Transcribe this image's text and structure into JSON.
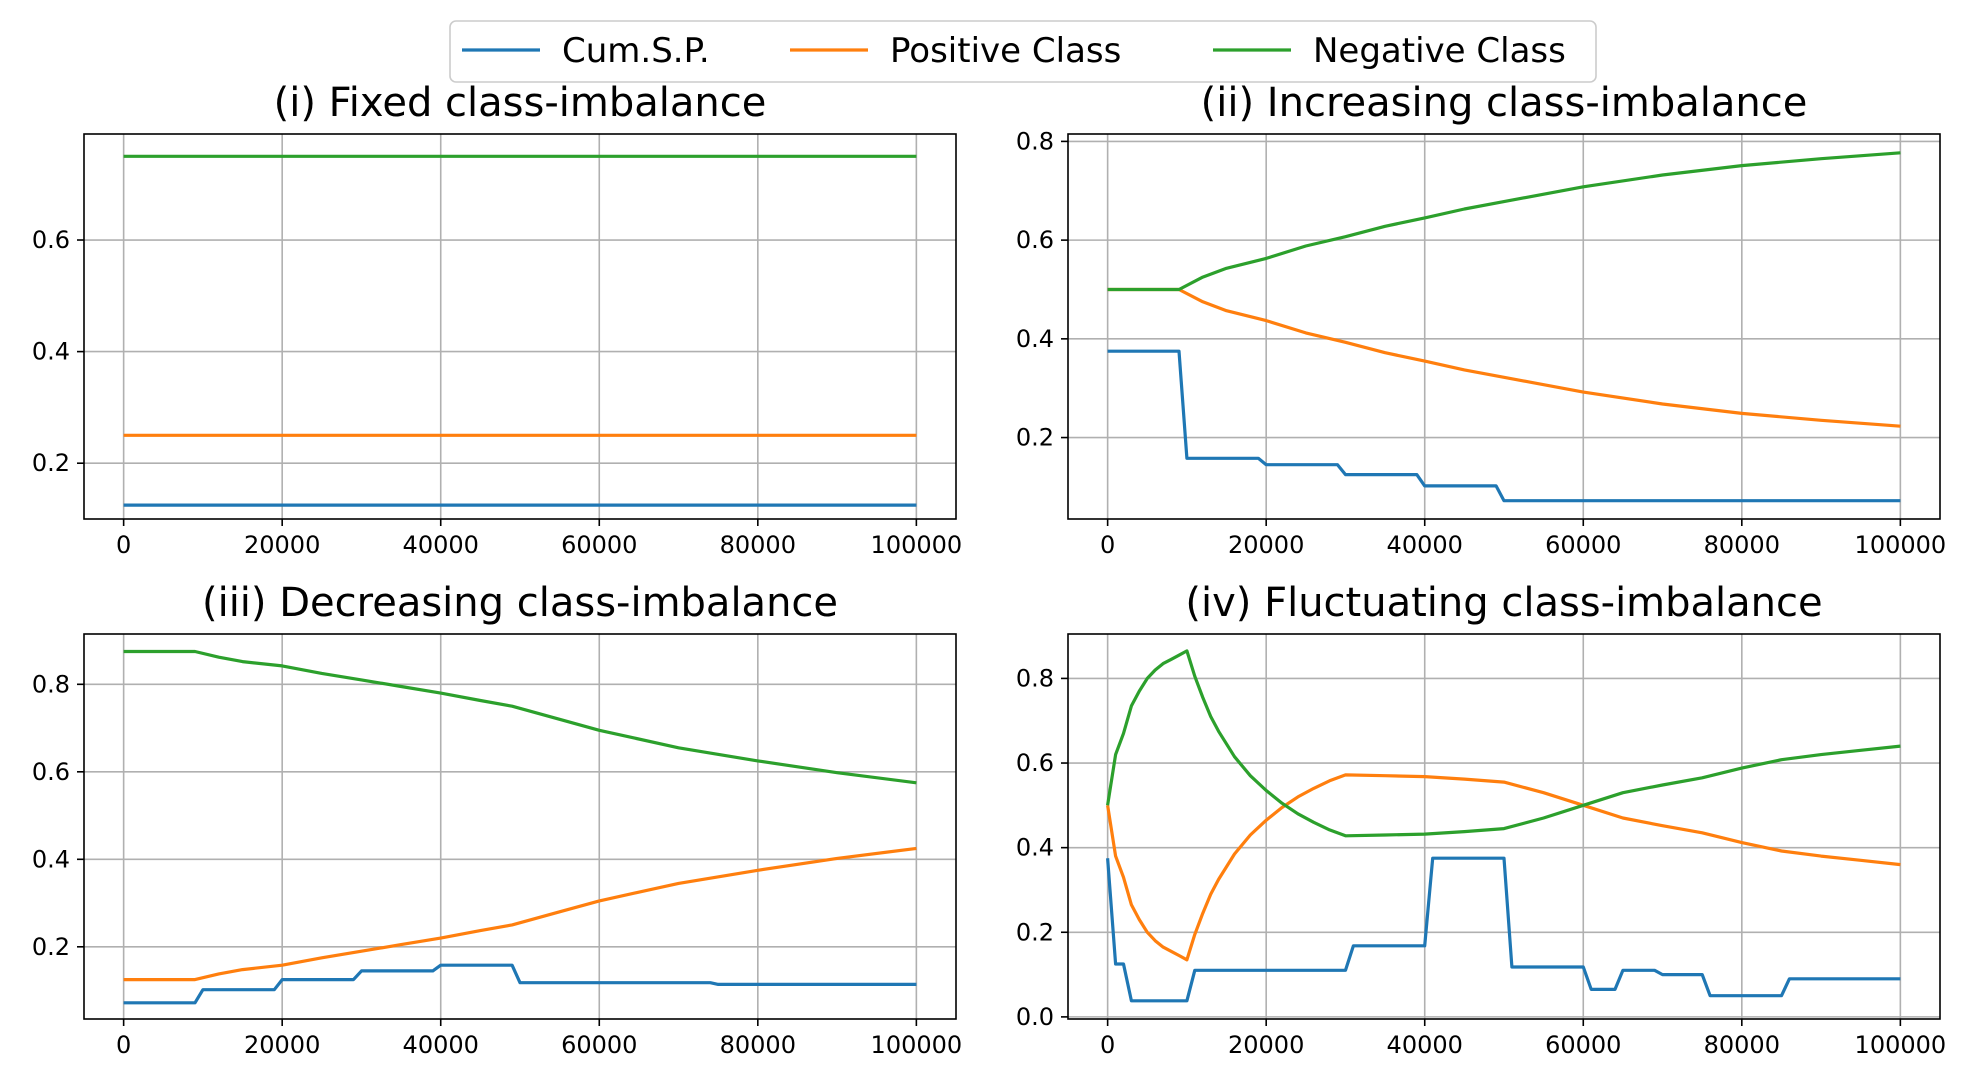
{
  "legend": {
    "position": "top-center",
    "entries": [
      {
        "label": "Cum.S.P.",
        "color": "#1f77b4"
      },
      {
        "label": "Positive Class",
        "color": "#ff7f0e"
      },
      {
        "label": "Negative Class",
        "color": "#2ca02c"
      }
    ]
  },
  "chart_data": [
    {
      "type": "line",
      "title": "(i) Fixed class-imbalance",
      "xlabel": "",
      "ylabel": "",
      "xlim": [
        -5000,
        105000
      ],
      "ylim": [
        0.1,
        0.79
      ],
      "xticks": [
        0,
        20000,
        40000,
        60000,
        80000,
        100000
      ],
      "xtick_labels": [
        "0",
        "20000",
        "40000",
        "60000",
        "80000",
        "100000"
      ],
      "yticks": [
        0.2,
        0.4,
        0.6
      ],
      "ytick_labels": [
        "0.2",
        "0.4",
        "0.6"
      ],
      "grid": true,
      "series": [
        {
          "name": "Cum.S.P.",
          "color": "#1f77b4",
          "x": [
            0,
            100000
          ],
          "y": [
            0.125,
            0.125
          ]
        },
        {
          "name": "Positive Class",
          "color": "#ff7f0e",
          "x": [
            0,
            100000
          ],
          "y": [
            0.25,
            0.25
          ]
        },
        {
          "name": "Negative Class",
          "color": "#2ca02c",
          "x": [
            0,
            100000
          ],
          "y": [
            0.75,
            0.75
          ]
        }
      ]
    },
    {
      "type": "line",
      "title": "(ii) Increasing class-imbalance",
      "xlabel": "",
      "ylabel": "",
      "xlim": [
        -5000,
        105000
      ],
      "ylim": [
        0.035,
        0.815
      ],
      "xticks": [
        0,
        20000,
        40000,
        60000,
        80000,
        100000
      ],
      "xtick_labels": [
        "0",
        "20000",
        "40000",
        "60000",
        "80000",
        "100000"
      ],
      "yticks": [
        0.2,
        0.4,
        0.6,
        0.8
      ],
      "ytick_labels": [
        "0.2",
        "0.4",
        "0.6",
        "0.8"
      ],
      "grid": true,
      "series": [
        {
          "name": "Cum.S.P.",
          "color": "#1f77b4",
          "x": [
            0,
            9000,
            10000,
            19000,
            20000,
            29000,
            30000,
            39000,
            40000,
            49000,
            50000,
            100000
          ],
          "y": [
            0.375,
            0.375,
            0.158,
            0.158,
            0.145,
            0.145,
            0.125,
            0.125,
            0.102,
            0.102,
            0.072,
            0.072
          ]
        },
        {
          "name": "Positive Class",
          "color": "#ff7f0e",
          "x": [
            0,
            9000,
            12000,
            15000,
            20000,
            25000,
            30000,
            35000,
            40000,
            45000,
            50000,
            60000,
            70000,
            80000,
            90000,
            100000
          ],
          "y": [
            0.5,
            0.5,
            0.475,
            0.457,
            0.437,
            0.412,
            0.393,
            0.372,
            0.355,
            0.337,
            0.322,
            0.292,
            0.268,
            0.249,
            0.235,
            0.223
          ]
        },
        {
          "name": "Negative Class",
          "color": "#2ca02c",
          "x": [
            0,
            9000,
            12000,
            15000,
            20000,
            25000,
            30000,
            35000,
            40000,
            45000,
            50000,
            60000,
            70000,
            80000,
            90000,
            100000
          ],
          "y": [
            0.5,
            0.5,
            0.525,
            0.543,
            0.563,
            0.588,
            0.607,
            0.628,
            0.645,
            0.663,
            0.678,
            0.708,
            0.732,
            0.751,
            0.765,
            0.777
          ]
        }
      ]
    },
    {
      "type": "line",
      "title": "(iii) Decreasing class-imbalance",
      "xlabel": "",
      "ylabel": "",
      "xlim": [
        -5000,
        105000
      ],
      "ylim": [
        0.035,
        0.915
      ],
      "xticks": [
        0,
        20000,
        40000,
        60000,
        80000,
        100000
      ],
      "xtick_labels": [
        "0",
        "20000",
        "40000",
        "60000",
        "80000",
        "100000"
      ],
      "yticks": [
        0.2,
        0.4,
        0.6,
        0.8
      ],
      "ytick_labels": [
        "0.2",
        "0.4",
        "0.6",
        "0.8"
      ],
      "grid": true,
      "series": [
        {
          "name": "Cum.S.P.",
          "color": "#1f77b4",
          "x": [
            0,
            9000,
            10000,
            19000,
            20000,
            29000,
            30000,
            39000,
            40000,
            49000,
            50000,
            74000,
            75000,
            100000
          ],
          "y": [
            0.072,
            0.072,
            0.102,
            0.102,
            0.125,
            0.125,
            0.145,
            0.145,
            0.158,
            0.158,
            0.118,
            0.118,
            0.114,
            0.114
          ]
        },
        {
          "name": "Positive Class",
          "color": "#ff7f0e",
          "x": [
            0,
            9000,
            12000,
            15000,
            20000,
            25000,
            30000,
            35000,
            40000,
            45000,
            49000,
            55000,
            60000,
            70000,
            80000,
            90000,
            100000
          ],
          "y": [
            0.125,
            0.125,
            0.138,
            0.148,
            0.158,
            0.175,
            0.19,
            0.205,
            0.22,
            0.237,
            0.25,
            0.28,
            0.305,
            0.345,
            0.375,
            0.402,
            0.425
          ]
        },
        {
          "name": "Negative Class",
          "color": "#2ca02c",
          "x": [
            0,
            9000,
            12000,
            15000,
            20000,
            25000,
            30000,
            35000,
            40000,
            45000,
            49000,
            55000,
            60000,
            70000,
            80000,
            90000,
            100000
          ],
          "y": [
            0.875,
            0.875,
            0.862,
            0.852,
            0.842,
            0.825,
            0.81,
            0.795,
            0.78,
            0.763,
            0.75,
            0.72,
            0.695,
            0.655,
            0.625,
            0.598,
            0.575
          ]
        }
      ]
    },
    {
      "type": "line",
      "title": "(iv) Fluctuating class-imbalance",
      "xlabel": "",
      "ylabel": "",
      "xlim": [
        -5000,
        105000
      ],
      "ylim": [
        -0.005,
        0.905
      ],
      "xticks": [
        0,
        20000,
        40000,
        60000,
        80000,
        100000
      ],
      "xtick_labels": [
        "0",
        "20000",
        "40000",
        "60000",
        "80000",
        "100000"
      ],
      "yticks": [
        0.0,
        0.2,
        0.4,
        0.6,
        0.8
      ],
      "ytick_labels": [
        "0.0",
        "0.2",
        "0.4",
        "0.6",
        "0.8"
      ],
      "grid": true,
      "series": [
        {
          "name": "Cum.S.P.",
          "color": "#1f77b4",
          "x": [
            0,
            1000,
            2000,
            3000,
            10000,
            11000,
            30000,
            31000,
            40000,
            41000,
            50000,
            51000,
            60000,
            61000,
            64000,
            65000,
            69000,
            70000,
            75000,
            76000,
            85000,
            86000,
            100000
          ],
          "y": [
            0.375,
            0.125,
            0.125,
            0.038,
            0.038,
            0.11,
            0.11,
            0.168,
            0.168,
            0.375,
            0.375,
            0.118,
            0.118,
            0.065,
            0.065,
            0.11,
            0.11,
            0.1,
            0.1,
            0.05,
            0.05,
            0.09,
            0.09
          ]
        },
        {
          "name": "Positive Class",
          "color": "#ff7f0e",
          "x": [
            0,
            1000,
            2000,
            3000,
            4000,
            5000,
            6000,
            7000,
            8000,
            9000,
            10000,
            11000,
            12000,
            13000,
            14000,
            16000,
            18000,
            20000,
            22000,
            24000,
            26000,
            28000,
            30000,
            35000,
            40000,
            45000,
            50000,
            55000,
            60000,
            65000,
            70000,
            75000,
            80000,
            85000,
            90000,
            95000,
            100000
          ],
          "y": [
            0.5,
            0.38,
            0.33,
            0.265,
            0.23,
            0.2,
            0.18,
            0.165,
            0.155,
            0.145,
            0.135,
            0.195,
            0.245,
            0.29,
            0.325,
            0.385,
            0.43,
            0.465,
            0.495,
            0.52,
            0.54,
            0.558,
            0.572,
            0.57,
            0.568,
            0.562,
            0.555,
            0.53,
            0.5,
            0.47,
            0.452,
            0.435,
            0.412,
            0.392,
            0.38,
            0.37,
            0.36
          ]
        },
        {
          "name": "Negative Class",
          "color": "#2ca02c",
          "x": [
            0,
            1000,
            2000,
            3000,
            4000,
            5000,
            6000,
            7000,
            8000,
            9000,
            10000,
            11000,
            12000,
            13000,
            14000,
            16000,
            18000,
            20000,
            22000,
            24000,
            26000,
            28000,
            30000,
            35000,
            40000,
            45000,
            50000,
            55000,
            60000,
            65000,
            70000,
            75000,
            80000,
            85000,
            90000,
            95000,
            100000
          ],
          "y": [
            0.5,
            0.62,
            0.67,
            0.735,
            0.77,
            0.8,
            0.82,
            0.835,
            0.845,
            0.855,
            0.865,
            0.805,
            0.755,
            0.71,
            0.675,
            0.615,
            0.57,
            0.535,
            0.505,
            0.48,
            0.46,
            0.442,
            0.428,
            0.43,
            0.432,
            0.438,
            0.445,
            0.47,
            0.5,
            0.53,
            0.548,
            0.565,
            0.588,
            0.608,
            0.62,
            0.63,
            0.64
          ]
        }
      ]
    }
  ]
}
